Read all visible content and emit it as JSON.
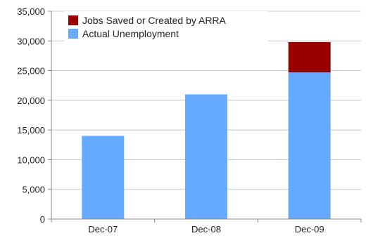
{
  "chart_data": {
    "type": "bar",
    "stacked": true,
    "categories": [
      "Dec-07",
      "Dec-08",
      "Dec-09"
    ],
    "series": [
      {
        "name": "Actual Unemployment",
        "values": [
          14000,
          21000,
          24700
        ],
        "color": "#66aaff"
      },
      {
        "name": "Jobs Saved or Created by ARRA",
        "values": [
          0,
          0,
          5100
        ],
        "color": "#990000"
      }
    ],
    "ylim": [
      0,
      35000
    ],
    "yticks": [
      0,
      5000,
      10000,
      15000,
      20000,
      25000,
      30000,
      35000
    ],
    "ytick_labels": [
      "0",
      "5,000",
      "10,000",
      "15,000",
      "20,000",
      "25,000",
      "30,000",
      "35,000"
    ],
    "grid": true,
    "legend": {
      "position": "top-left",
      "entries": [
        {
          "label": "Jobs Saved or Created by ARRA",
          "color": "#990000"
        },
        {
          "label": "Actual Unemployment",
          "color": "#66aaff"
        }
      ]
    },
    "title": "",
    "xlabel": "",
    "ylabel": ""
  }
}
